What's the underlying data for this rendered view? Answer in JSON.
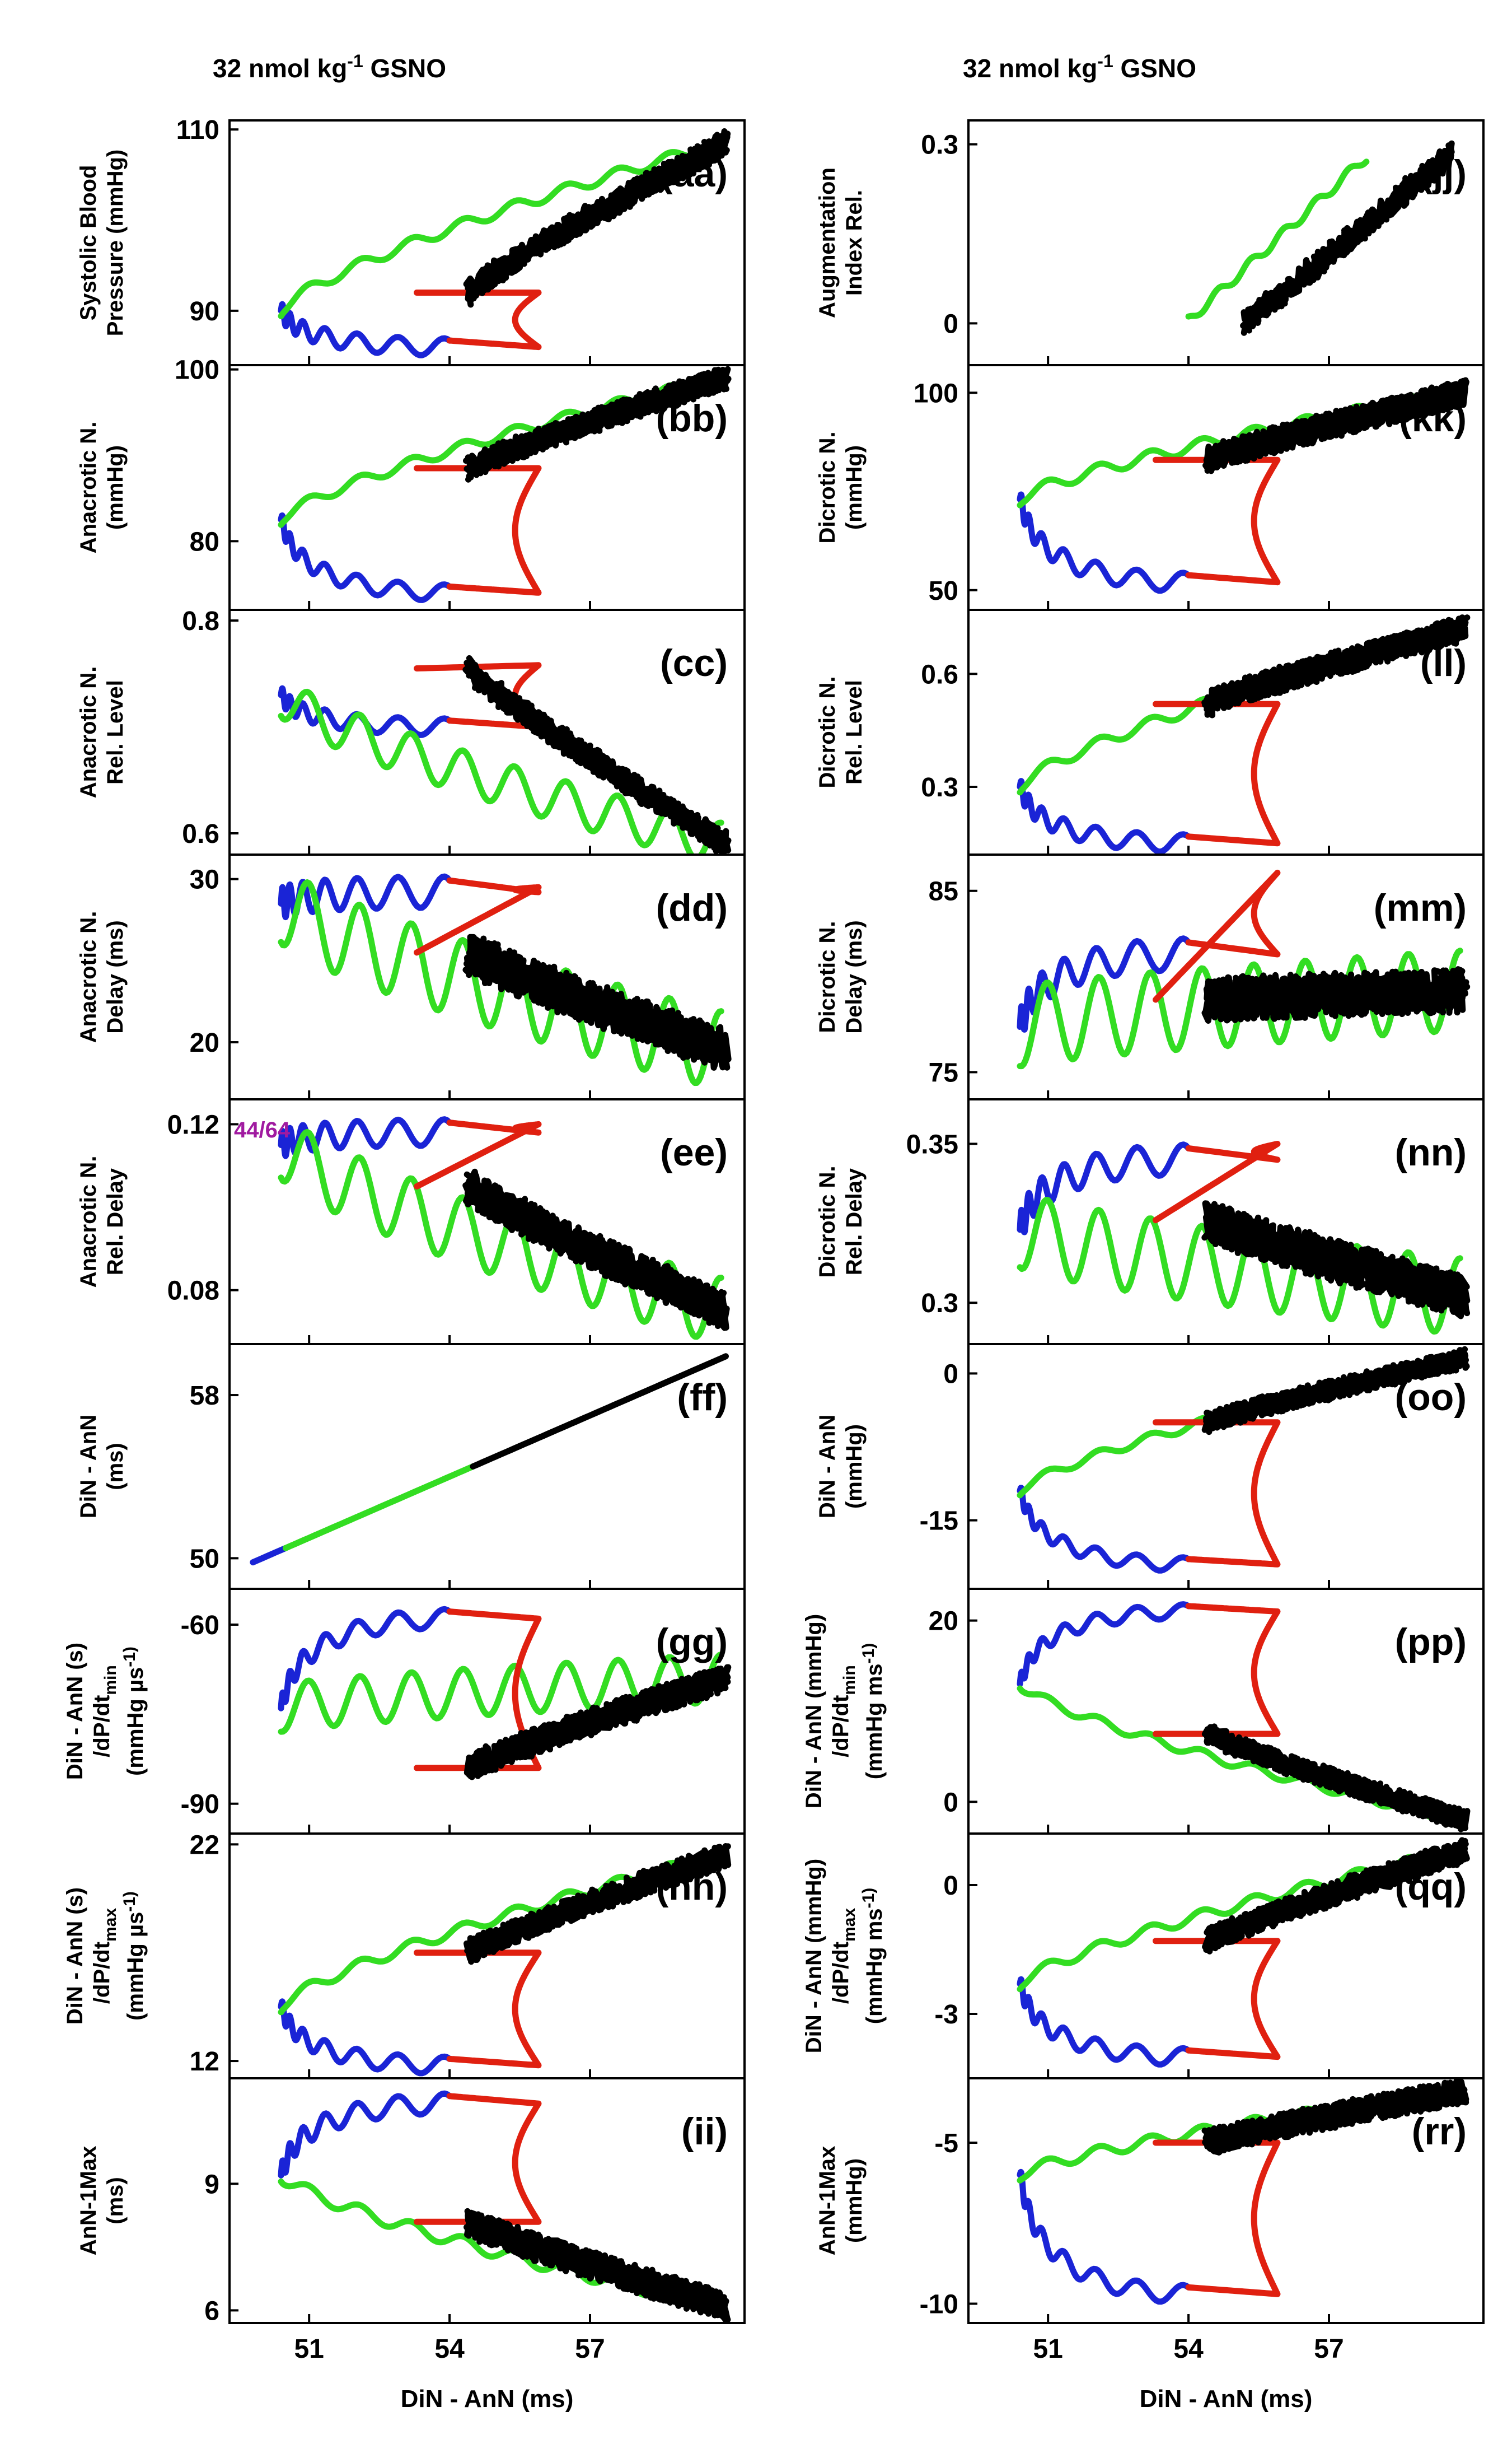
{
  "figure": {
    "titles": {
      "left": {
        "prefix": "32 nmol kg",
        "sup": "-1",
        "suffix": " GSNO"
      },
      "right": {
        "prefix": "32 nmol kg",
        "sup": "-1",
        "suffix": " GSNO"
      }
    },
    "xlabel": "DiN - AnN (ms)",
    "colors": {
      "blue": "#1a24d6",
      "green": "#33dd22",
      "red": "#e02010",
      "black": "#000000",
      "annotation": "#a01aa0"
    }
  },
  "chart_data": [
    {
      "id": "aa",
      "type": "line",
      "panel_label": "(aa)",
      "ylabel_lines": [
        "Systolic Blood",
        "Pressure (mmHg)"
      ],
      "yticks": [
        90,
        110
      ],
      "ylim": [
        84,
        111
      ],
      "xlim": [
        49.3,
        60.3
      ],
      "xticks": [
        51,
        54,
        57
      ],
      "xaxis_labeled": false,
      "shape": {
        "A": 108.5,
        "B": 90.0,
        "C": 86.0,
        "D": 92.0,
        "amp": 1.2
      }
    },
    {
      "id": "bb",
      "type": "line",
      "panel_label": "(bb)",
      "ylabel_lines": [
        "Anacrotic N.",
        "(mmHg)"
      ],
      "yticks": [
        80,
        100
      ],
      "ylim": [
        72,
        100.5
      ],
      "xlim": [
        49.3,
        60.3
      ],
      "xticks": [
        51,
        54,
        57
      ],
      "xaxis_labeled": false,
      "shape": {
        "A": 99.0,
        "B": 82.5,
        "C": 74.0,
        "D": 88.5,
        "amp": 1.2
      }
    },
    {
      "id": "cc",
      "type": "line",
      "panel_label": "(cc)",
      "ylabel_lines": [
        "Anacrotic N.",
        "Rel. Level"
      ],
      "yticks": [
        0.6,
        0.8
      ],
      "ylim": [
        0.58,
        0.81
      ],
      "xlim": [
        49.3,
        60.3
      ],
      "xticks": [
        51,
        54,
        57
      ],
      "xaxis_labeled": false,
      "shape": {
        "A": 0.59,
        "B": 0.73,
        "C": 0.7,
        "D": 0.755,
        "amp": 0.01,
        "R": 0.758
      }
    },
    {
      "id": "dd",
      "type": "line",
      "panel_label": "(dd)",
      "ylabel_lines": [
        "Anacrotic N.",
        "Delay (ms)"
      ],
      "yticks": [
        20,
        30
      ],
      "ylim": [
        16.5,
        31.5
      ],
      "xlim": [
        49.3,
        60.3
      ],
      "xticks": [
        51,
        54,
        57
      ],
      "xaxis_labeled": false,
      "shape": {
        "A": 19.5,
        "B": 28.5,
        "C": 29.2,
        "D": 25.5,
        "amp": 1.2,
        "R": 29.5
      }
    },
    {
      "id": "ee",
      "type": "line",
      "panel_label": "(ee)",
      "ylabel_lines": [
        "Anacrotic N.",
        "Rel. Delay"
      ],
      "yticks": [
        0.08,
        0.12
      ],
      "ylim": [
        0.067,
        0.126
      ],
      "xlim": [
        49.3,
        60.3
      ],
      "xticks": [
        51,
        54,
        57
      ],
      "xaxis_labeled": false,
      "annotation": "44/64",
      "shape": {
        "A": 0.075,
        "B": 0.115,
        "C": 0.118,
        "D": 0.105,
        "amp": 0.004,
        "R": 0.12
      }
    },
    {
      "id": "ff",
      "type": "line",
      "panel_label": "(ff)",
      "ylabel_lines": [
        "DiN - AnN",
        "(ms)"
      ],
      "yticks": [
        50,
        58
      ],
      "ylim": [
        48.5,
        60.5
      ],
      "xlim": [
        49.3,
        60.3
      ],
      "xticks": [
        51,
        54,
        57
      ],
      "xaxis_labeled": false,
      "shape": {
        "line": true,
        "x0": 49.8,
        "x1": 60.0
      }
    },
    {
      "id": "gg",
      "type": "line",
      "panel_label": "(gg)",
      "ylabel_lines": [
        "DiN - AnN (s)",
        "/dP/dt|min",
        "(mmHg µs|-1)"
      ],
      "yticks": [
        -60,
        -90
      ],
      "ylim": [
        -95,
        -54
      ],
      "xlim": [
        49.3,
        60.3
      ],
      "xticks": [
        51,
        54,
        57
      ],
      "xaxis_labeled": false,
      "shape": {
        "A": -69,
        "B": -74,
        "C": -59,
        "D": -84,
        "amp": 2.0,
        "gg": true
      }
    },
    {
      "id": "hh",
      "type": "line",
      "panel_label": "(hh)",
      "ylabel_lines": [
        "DiN - AnN (s)",
        "/dP/dt|max",
        "(mmHg µs|-1)"
      ],
      "yticks": [
        12,
        22
      ],
      "ylim": [
        11.2,
        22.5
      ],
      "xlim": [
        49.3,
        60.3
      ],
      "xticks": [
        51,
        54,
        57
      ],
      "xaxis_labeled": false,
      "shape": {
        "A": 21.5,
        "B": 14.5,
        "C": 11.8,
        "D": 17.0,
        "amp": 0.5
      }
    },
    {
      "id": "ii",
      "type": "line",
      "panel_label": "(ii)",
      "ylabel_lines": [
        "AnN-1Max",
        "(ms)"
      ],
      "yticks": [
        6,
        9
      ],
      "ylim": [
        5.7,
        11.5
      ],
      "xlim": [
        49.3,
        60.3
      ],
      "xticks": [
        51,
        54,
        57
      ],
      "xaxis_labeled": true,
      "shape": {
        "A": 6.1,
        "B": 9.2,
        "C": 10.9,
        "D": 8.1,
        "amp": 0.3,
        "ii": true
      }
    },
    {
      "id": "jj",
      "type": "line",
      "panel_label": "(jj)",
      "ylabel_lines": [
        "Augmentation",
        "Index Rel."
      ],
      "yticks": [
        0.0,
        0.3
      ],
      "ylim": [
        -0.07,
        0.34
      ],
      "xlim": [
        49.3,
        60.3
      ],
      "xticks": [
        51,
        54,
        57
      ],
      "xaxis_labeled": false,
      "shape": {
        "A": 0.28,
        "jj": true
      }
    },
    {
      "id": "kk",
      "type": "line",
      "panel_label": "(kk)",
      "ylabel_lines": [
        "Dicrotic N.",
        "(mmHg)"
      ],
      "yticks": [
        50,
        100
      ],
      "ylim": [
        45,
        107
      ],
      "xlim": [
        49.3,
        60.3
      ],
      "xticks": [
        51,
        54,
        57
      ],
      "xaxis_labeled": false,
      "shape": {
        "A": 100,
        "B": 73,
        "C": 52,
        "D": 83,
        "amp": 3
      }
    },
    {
      "id": "ll",
      "type": "line",
      "panel_label": "(ll)",
      "ylabel_lines": [
        "Dicrotic N.",
        "Rel. Level"
      ],
      "yticks": [
        0.3,
        0.6
      ],
      "ylim": [
        0.12,
        0.77
      ],
      "xlim": [
        49.3,
        60.3
      ],
      "xticks": [
        51,
        54,
        57
      ],
      "xaxis_labeled": false,
      "shape": {
        "A": 0.72,
        "B": 0.3,
        "C": 0.15,
        "D": 0.52,
        "amp": 0.03
      }
    },
    {
      "id": "mm",
      "type": "line",
      "panel_label": "(mm)",
      "ylabel_lines": [
        "Dicrotic N.",
        "Delay (ms)"
      ],
      "yticks": [
        75,
        85
      ],
      "ylim": [
        73.5,
        87
      ],
      "xlim": [
        49.3,
        60.3
      ],
      "xticks": [
        51,
        54,
        57
      ],
      "xaxis_labeled": false,
      "shape": {
        "A": 79.5,
        "B": 77.5,
        "C": 81.5,
        "D": 79.0,
        "amp": 1.1,
        "R": 86
      }
    },
    {
      "id": "nn",
      "type": "line",
      "panel_label": "(nn)",
      "ylabel_lines": [
        "Dicrotic N.",
        "Rel. Delay"
      ],
      "yticks": [
        0.3,
        0.35
      ],
      "ylim": [
        0.287,
        0.364
      ],
      "xlim": [
        49.3,
        60.3
      ],
      "xticks": [
        51,
        54,
        57
      ],
      "xaxis_labeled": false,
      "shape": {
        "A": 0.302,
        "B": 0.323,
        "C": 0.345,
        "D": 0.326,
        "amp": 0.006,
        "R": 0.35
      }
    },
    {
      "id": "oo",
      "type": "line",
      "panel_label": "(oo)",
      "ylabel_lines": [
        "DiN - AnN",
        "(mmHg)"
      ],
      "yticks": [
        0,
        -15
      ],
      "ylim": [
        -22,
        3
      ],
      "xlim": [
        49.3,
        60.3
      ],
      "xticks": [
        51,
        54,
        57
      ],
      "xaxis_labeled": false,
      "shape": {
        "A": 1.5,
        "B": -12,
        "C": -19.5,
        "D": -5,
        "amp": 0.9
      }
    },
    {
      "id": "pp",
      "type": "line",
      "panel_label": "(pp)",
      "ylabel_lines": [
        "DiN - AnN (mmHg)",
        "/dP/dt|min",
        "(mmHg ms|-1)"
      ],
      "yticks": [
        20,
        0
      ],
      "ylim": [
        -3.5,
        23.5
      ],
      "xlim": [
        49.3,
        60.3
      ],
      "xticks": [
        51,
        54,
        57
      ],
      "xaxis_labeled": false,
      "shape": {
        "A": -2.0,
        "B": 13,
        "C": 21,
        "D": 7.5,
        "amp": 1.0,
        "inv": true
      }
    },
    {
      "id": "qq",
      "type": "line",
      "panel_label": "(qq)",
      "ylabel_lines": [
        "DiN - AnN (mmHg)",
        "/dP/dt|max",
        "(mmHg ms|-1)"
      ],
      "yticks": [
        0,
        -3
      ],
      "ylim": [
        -4.5,
        1.2
      ],
      "xlim": [
        49.3,
        60.3
      ],
      "xticks": [
        51,
        54,
        57
      ],
      "xaxis_labeled": false,
      "shape": {
        "A": 0.8,
        "B": -2.3,
        "C": -4.0,
        "D": -1.3,
        "amp": 0.25
      }
    },
    {
      "id": "rr",
      "type": "line",
      "panel_label": "(rr)",
      "ylabel_lines": [
        "AnN-1Max",
        "(mmHg)"
      ],
      "yticks": [
        -5,
        -10
      ],
      "ylim": [
        -10.6,
        -3.0
      ],
      "xlim": [
        49.3,
        60.3
      ],
      "xticks": [
        51,
        54,
        57
      ],
      "xaxis_labeled": true,
      "shape": {
        "A": -3.4,
        "B": -6.0,
        "C": -9.7,
        "D": -5.0,
        "amp": 0.35
      }
    }
  ]
}
